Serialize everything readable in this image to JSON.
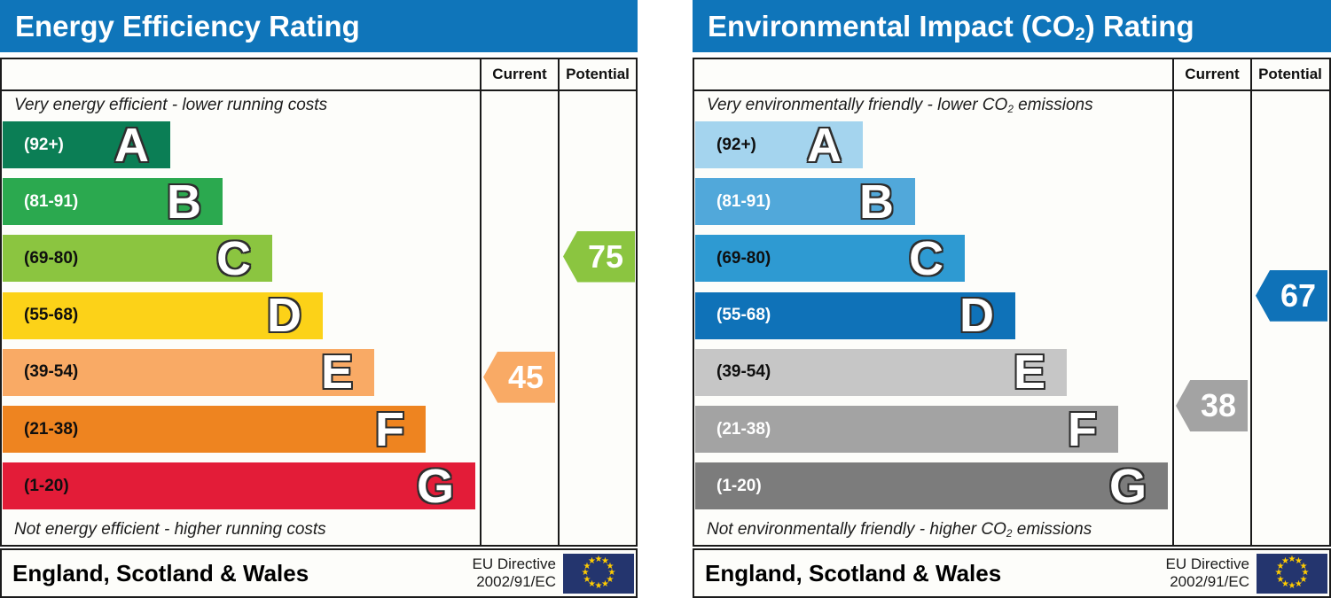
{
  "charts": [
    {
      "id": "energy-efficiency",
      "title_pre": "Energy Efficiency Rating",
      "title_sub": "",
      "title_post": "",
      "col_current": "Current",
      "col_potential": "Potential",
      "caption_top_pre": "Very energy efficient - lower running costs",
      "caption_top_sub": "",
      "caption_top_post": "",
      "caption_bottom_pre": "Not energy efficient - higher running costs",
      "caption_bottom_sub": "",
      "caption_bottom_post": "",
      "bands": [
        {
          "letter": "A",
          "range": "(92+)",
          "min": 92,
          "max": 100,
          "color": "#0b7e55",
          "label_color": "#ffffff",
          "width_pct": 35.3
        },
        {
          "letter": "B",
          "range": "(81-91)",
          "min": 81,
          "max": 91,
          "color": "#2ba94f",
          "label_color": "#ffffff",
          "width_pct": 46.3
        },
        {
          "letter": "C",
          "range": "(69-80)",
          "min": 69,
          "max": 80,
          "color": "#8bc540",
          "label_color": "#0f0f0f",
          "width_pct": 56.7
        },
        {
          "letter": "D",
          "range": "(55-68)",
          "min": 55,
          "max": 68,
          "color": "#fcd218",
          "label_color": "#0f0f0f",
          "width_pct": 67.4
        },
        {
          "letter": "E",
          "range": "(39-54)",
          "min": 39,
          "max": 54,
          "color": "#f9aa65",
          "label_color": "#0f0f0f",
          "width_pct": 78.2
        },
        {
          "letter": "F",
          "range": "(21-38)",
          "min": 21,
          "max": 38,
          "color": "#ee8420",
          "label_color": "#0f0f0f",
          "width_pct": 89.0
        },
        {
          "letter": "G",
          "range": "(1-20)",
          "min": 1,
          "max": 20,
          "color": "#e31c38",
          "label_color": "#0f0f0f",
          "width_pct": 99.4
        }
      ],
      "markers": {
        "current": {
          "value": 45,
          "band": "E",
          "color": "#f9aa65"
        },
        "potential": {
          "value": 75,
          "band": "C",
          "color": "#8bc540"
        }
      },
      "footer_region": "England, Scotland & Wales",
      "footer_directive_1": "EU Directive",
      "footer_directive_2": "2002/91/EC"
    },
    {
      "id": "environmental-impact",
      "title_pre": "Environmental Impact (CO",
      "title_sub": "2",
      "title_post": ") Rating",
      "col_current": "Current",
      "col_potential": "Potential",
      "caption_top_pre": "Very environmentally friendly - lower CO",
      "caption_top_sub": "2",
      "caption_top_post": " emissions",
      "caption_bottom_pre": "Not environmentally friendly - higher CO",
      "caption_bottom_sub": "2",
      "caption_bottom_post": " emissions",
      "bands": [
        {
          "letter": "A",
          "range": "(92+)",
          "min": 92,
          "max": 100,
          "color": "#a4d4ee",
          "label_color": "#0f0f0f",
          "width_pct": 35.3
        },
        {
          "letter": "B",
          "range": "(81-91)",
          "min": 81,
          "max": 91,
          "color": "#51a8da",
          "label_color": "#ffffff",
          "width_pct": 46.3
        },
        {
          "letter": "C",
          "range": "(69-80)",
          "min": 69,
          "max": 80,
          "color": "#2e9ad2",
          "label_color": "#0f0f0f",
          "width_pct": 56.7
        },
        {
          "letter": "D",
          "range": "(55-68)",
          "min": 55,
          "max": 68,
          "color": "#0f72b8",
          "label_color": "#ffffff",
          "width_pct": 67.4
        },
        {
          "letter": "E",
          "range": "(39-54)",
          "min": 39,
          "max": 54,
          "color": "#c6c6c6",
          "label_color": "#0f0f0f",
          "width_pct": 78.2
        },
        {
          "letter": "F",
          "range": "(21-38)",
          "min": 21,
          "max": 38,
          "color": "#a3a3a3",
          "label_color": "#ffffff",
          "width_pct": 89.0
        },
        {
          "letter": "G",
          "range": "(1-20)",
          "min": 1,
          "max": 20,
          "color": "#7c7c7c",
          "label_color": "#ffffff",
          "width_pct": 99.4
        }
      ],
      "markers": {
        "current": {
          "value": 38,
          "band": "F",
          "color": "#a3a3a3"
        },
        "potential": {
          "value": 67,
          "band": "D",
          "color": "#0f72b8"
        }
      },
      "footer_region": "England, Scotland & Wales",
      "footer_directive_1": "EU Directive",
      "footer_directive_2": "2002/91/EC"
    }
  ],
  "flag": {
    "background": "#24356e",
    "star_color": "#ffcc00",
    "star_count": 12,
    "star_glyph": "★"
  },
  "colors": {
    "header_blue": "#0f75ba",
    "border": "#1a1a1a"
  },
  "chart_data": [
    {
      "type": "bar",
      "title": "Energy Efficiency Rating",
      "categories": [
        "A (92+)",
        "B (81-91)",
        "C (69-80)",
        "D (55-68)",
        "E (39-54)",
        "F (21-38)",
        "G (1-20)"
      ],
      "series": [
        {
          "name": "Current",
          "value": 45,
          "band": "E"
        },
        {
          "name": "Potential",
          "value": 75,
          "band": "C"
        }
      ],
      "scale_range": [
        1,
        100
      ],
      "top_note": "Very energy efficient - lower running costs",
      "bottom_note": "Not energy efficient - higher running costs",
      "footer": "England, Scotland & Wales",
      "directive": "EU Directive 2002/91/EC"
    },
    {
      "type": "bar",
      "title": "Environmental Impact (CO2) Rating",
      "categories": [
        "A (92+)",
        "B (81-91)",
        "C (69-80)",
        "D (55-68)",
        "E (39-54)",
        "F (21-38)",
        "G (1-20)"
      ],
      "series": [
        {
          "name": "Current",
          "value": 38,
          "band": "F"
        },
        {
          "name": "Potential",
          "value": 67,
          "band": "D"
        }
      ],
      "scale_range": [
        1,
        100
      ],
      "top_note": "Very environmentally friendly - lower CO2 emissions",
      "bottom_note": "Not environmentally friendly - higher CO2 emissions",
      "footer": "England, Scotland & Wales",
      "directive": "EU Directive 2002/91/EC"
    }
  ]
}
